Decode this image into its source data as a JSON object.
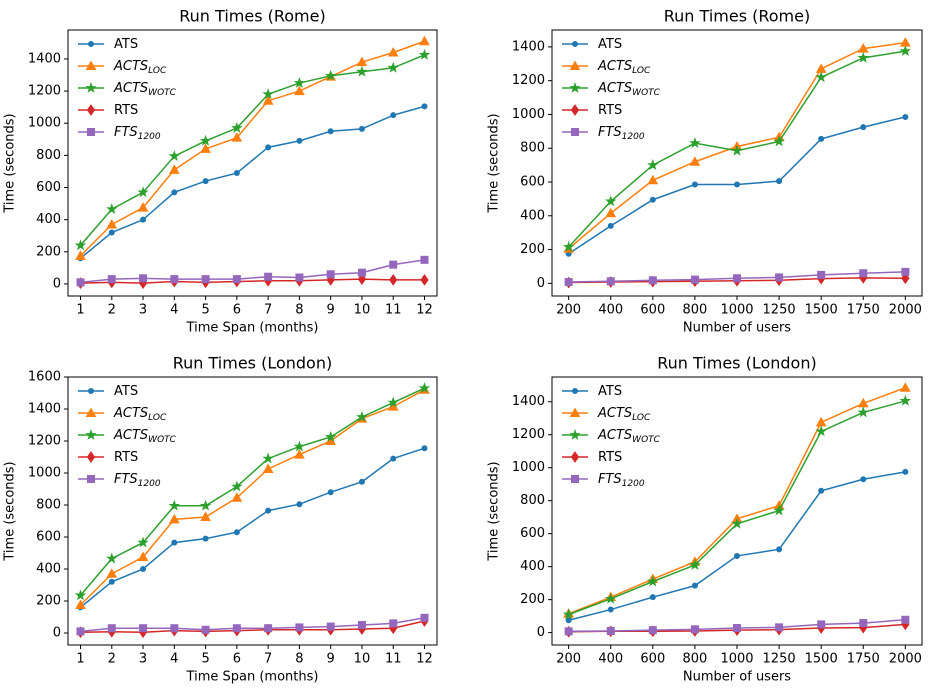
{
  "chart_data": [
    {
      "type": "line",
      "title": "Run Times (Rome)",
      "xlabel": "Time Span (months)",
      "ylabel": "Time (seconds)",
      "legend": "upper left",
      "x": [
        1,
        2,
        3,
        4,
        5,
        6,
        7,
        8,
        9,
        10,
        11,
        12
      ],
      "xlim": [
        0.6,
        12.4
      ],
      "xticks": [
        1,
        2,
        3,
        4,
        5,
        6,
        7,
        8,
        9,
        10,
        11,
        12
      ],
      "ylim": [
        -75,
        1580
      ],
      "yticks": [
        0,
        200,
        400,
        600,
        800,
        1000,
        1200,
        1400
      ],
      "series": [
        {
          "name": "ATS",
          "color": "#1f77b4",
          "marker": "circle",
          "values": [
            160,
            320,
            400,
            570,
            640,
            690,
            850,
            890,
            950,
            965,
            1050,
            1105
          ]
        },
        {
          "name": "ACTS",
          "name_sub": "LOC",
          "color": "#ff7f0e",
          "marker": "triangle",
          "values": [
            175,
            370,
            475,
            710,
            840,
            910,
            1140,
            1200,
            1290,
            1380,
            1440,
            1510
          ]
        },
        {
          "name": "ACTS",
          "name_sub": "WOTC",
          "color": "#2ca02c",
          "marker": "star",
          "values": [
            240,
            465,
            570,
            795,
            890,
            970,
            1180,
            1250,
            1295,
            1320,
            1345,
            1425
          ]
        },
        {
          "name": "RTS",
          "color": "#d62728",
          "marker": "diamond",
          "values": [
            5,
            10,
            5,
            15,
            10,
            15,
            20,
            20,
            25,
            30,
            25,
            25
          ]
        },
        {
          "name": "FTS",
          "name_sub": "1200",
          "color": "#9467bd",
          "marker": "square",
          "values": [
            10,
            30,
            35,
            30,
            30,
            30,
            45,
            40,
            60,
            70,
            120,
            150
          ]
        }
      ]
    },
    {
      "type": "line",
      "title": "Run Times (Rome)",
      "xlabel": "Number of users",
      "ylabel": "Time (seconds)",
      "legend": "upper left",
      "categories": [
        200,
        400,
        600,
        800,
        1000,
        1250,
        1500,
        1750,
        2000
      ],
      "ylim": [
        -75,
        1500
      ],
      "yticks": [
        0,
        200,
        400,
        600,
        800,
        1000,
        1200,
        1400
      ],
      "series": [
        {
          "name": "ATS",
          "color": "#1f77b4",
          "marker": "circle",
          "values": [
            175,
            340,
            495,
            585,
            585,
            605,
            855,
            925,
            985
          ]
        },
        {
          "name": "ACTS",
          "name_sub": "LOC",
          "color": "#ff7f0e",
          "marker": "triangle",
          "values": [
            205,
            415,
            610,
            720,
            810,
            865,
            1270,
            1390,
            1425
          ]
        },
        {
          "name": "ACTS",
          "name_sub": "WOTC",
          "color": "#2ca02c",
          "marker": "star",
          "values": [
            215,
            485,
            700,
            830,
            785,
            840,
            1220,
            1335,
            1375
          ]
        },
        {
          "name": "RTS",
          "color": "#d62728",
          "marker": "diamond",
          "values": [
            5,
            8,
            10,
            12,
            15,
            18,
            28,
            32,
            30
          ]
        },
        {
          "name": "FTS",
          "name_sub": "1200",
          "color": "#9467bd",
          "marker": "square",
          "values": [
            8,
            12,
            18,
            22,
            30,
            35,
            50,
            60,
            68
          ]
        }
      ]
    },
    {
      "type": "line",
      "title": "Run Times (London)",
      "xlabel": "Time Span (months)",
      "ylabel": "Time (seconds)",
      "legend": "upper left",
      "x": [
        1,
        2,
        3,
        4,
        5,
        6,
        7,
        8,
        9,
        10,
        11,
        12
      ],
      "xlim": [
        0.6,
        12.4
      ],
      "xticks": [
        1,
        2,
        3,
        4,
        5,
        6,
        7,
        8,
        9,
        10,
        11,
        12
      ],
      "ylim": [
        -75,
        1600
      ],
      "yticks": [
        0,
        200,
        400,
        600,
        800,
        1000,
        1200,
        1400,
        1600
      ],
      "series": [
        {
          "name": "ATS",
          "color": "#1f77b4",
          "marker": "circle",
          "values": [
            160,
            320,
            400,
            565,
            590,
            630,
            765,
            805,
            880,
            945,
            1090,
            1155
          ]
        },
        {
          "name": "ACTS",
          "name_sub": "LOC",
          "color": "#ff7f0e",
          "marker": "triangle",
          "values": [
            175,
            370,
            475,
            710,
            725,
            845,
            1025,
            1115,
            1200,
            1340,
            1415,
            1520
          ]
        },
        {
          "name": "ACTS",
          "name_sub": "WOTC",
          "color": "#2ca02c",
          "marker": "star",
          "values": [
            235,
            465,
            565,
            795,
            795,
            915,
            1090,
            1165,
            1225,
            1350,
            1440,
            1530
          ]
        },
        {
          "name": "RTS",
          "color": "#d62728",
          "marker": "diamond",
          "values": [
            5,
            8,
            5,
            15,
            10,
            15,
            20,
            20,
            20,
            25,
            30,
            75
          ]
        },
        {
          "name": "FTS",
          "name_sub": "1200",
          "color": "#9467bd",
          "marker": "square",
          "values": [
            10,
            30,
            30,
            30,
            20,
            30,
            30,
            35,
            40,
            50,
            60,
            95
          ]
        }
      ]
    },
    {
      "type": "line",
      "title": "Run Times (London)",
      "xlabel": "Number of users",
      "ylabel": "Time (seconds)",
      "legend": "upper left",
      "categories": [
        200,
        400,
        600,
        800,
        1000,
        1250,
        1500,
        1750,
        2000
      ],
      "ylim": [
        -75,
        1550
      ],
      "yticks": [
        0,
        200,
        400,
        600,
        800,
        1000,
        1200,
        1400
      ],
      "series": [
        {
          "name": "ATS",
          "color": "#1f77b4",
          "marker": "circle",
          "values": [
            75,
            140,
            215,
            285,
            465,
            505,
            860,
            930,
            975
          ]
        },
        {
          "name": "ACTS",
          "name_sub": "LOC",
          "color": "#ff7f0e",
          "marker": "triangle",
          "values": [
            115,
            215,
            325,
            430,
            690,
            770,
            1275,
            1390,
            1485
          ]
        },
        {
          "name": "ACTS",
          "name_sub": "WOTC",
          "color": "#2ca02c",
          "marker": "star",
          "values": [
            110,
            205,
            310,
            410,
            660,
            740,
            1220,
            1335,
            1405
          ]
        },
        {
          "name": "RTS",
          "color": "#d62728",
          "marker": "diamond",
          "values": [
            5,
            8,
            8,
            10,
            15,
            18,
            28,
            30,
            50
          ]
        },
        {
          "name": "FTS",
          "name_sub": "1200",
          "color": "#9467bd",
          "marker": "square",
          "values": [
            8,
            10,
            15,
            20,
            28,
            32,
            50,
            58,
            78
          ]
        }
      ]
    }
  ]
}
